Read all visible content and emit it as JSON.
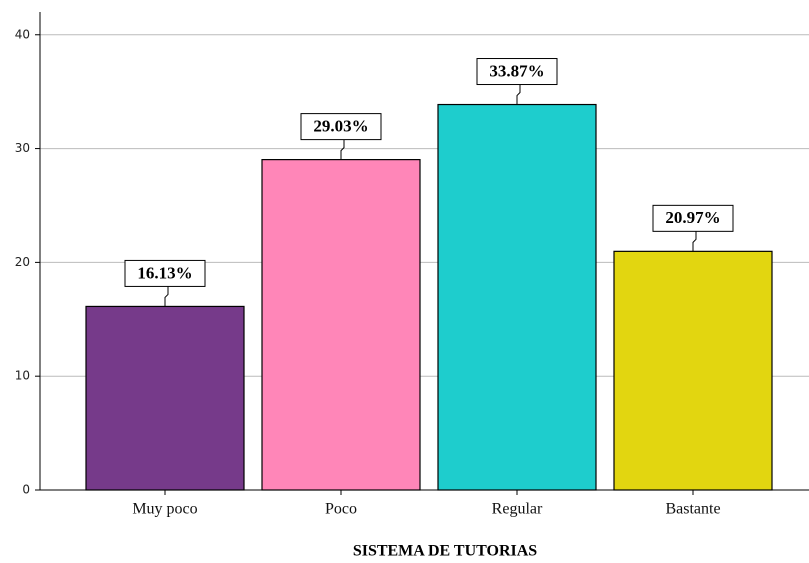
{
  "chart_data": {
    "type": "bar",
    "x_label": "SISTEMA DE TUTORIAS",
    "categories": [
      "Muy poco",
      "Poco",
      "Regular",
      "Bastante"
    ],
    "values": [
      16.13,
      29.03,
      33.87,
      20.97
    ],
    "value_labels": [
      "16.13%",
      "29.03%",
      "33.87%",
      "20.97%"
    ],
    "colors": [
      "#763a8a",
      "#ff86b8",
      "#1ecdcd",
      "#e2d610"
    ],
    "ylim": [
      0,
      42
    ],
    "yticks": [
      0,
      10,
      20,
      30,
      40
    ],
    "grid": true
  }
}
